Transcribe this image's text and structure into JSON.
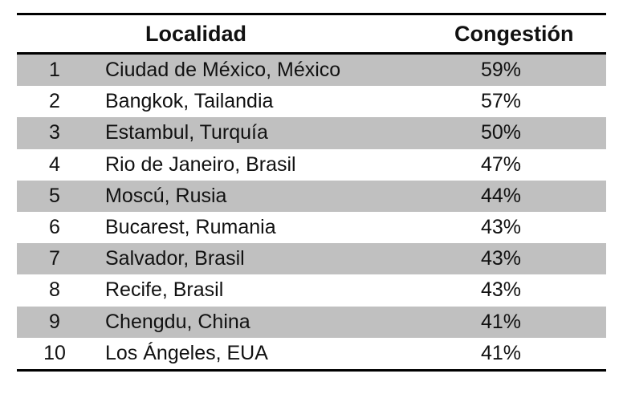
{
  "table": {
    "headers": {
      "rank": "",
      "locality": "Localidad",
      "congestion": "Congestión"
    },
    "rows": [
      {
        "rank": "1",
        "locality": "Ciudad de México, México",
        "congestion": "59%"
      },
      {
        "rank": "2",
        "locality": "Bangkok, Tailandia",
        "congestion": "57%"
      },
      {
        "rank": "3",
        "locality": "Estambul, Turquía",
        "congestion": "50%"
      },
      {
        "rank": "4",
        "locality": "Rio de Janeiro, Brasil",
        "congestion": "47%"
      },
      {
        "rank": "5",
        "locality": "Moscú, Rusia",
        "congestion": "44%"
      },
      {
        "rank": "6",
        "locality": "Bucarest, Rumania",
        "congestion": "43%"
      },
      {
        "rank": "7",
        "locality": "Salvador, Brasil",
        "congestion": "43%"
      },
      {
        "rank": "8",
        "locality": "Recife, Brasil",
        "congestion": "43%"
      },
      {
        "rank": "9",
        "locality": "Chengdu, China",
        "congestion": "41%"
      },
      {
        "rank": "10",
        "locality": "Los Ángeles, EUA",
        "congestion": "41%"
      }
    ]
  }
}
